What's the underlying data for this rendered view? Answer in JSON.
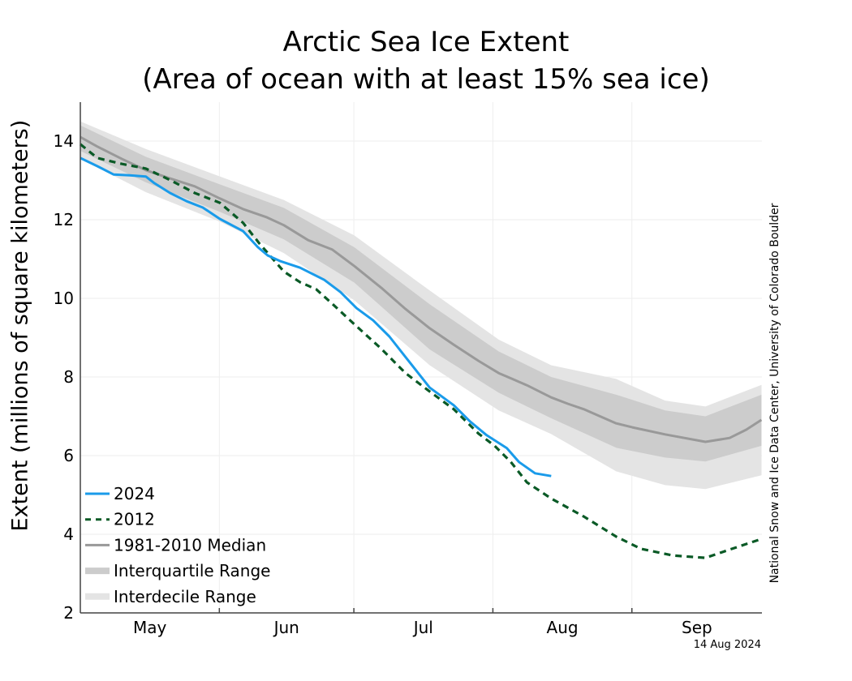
{
  "chart_data": {
    "type": "line",
    "title": "Arctic Sea Ice Extent",
    "subtitle": "(Area of ocean with at least 15% sea ice)",
    "xlabel": "",
    "ylabel": "Extent (millions of square kilometers)",
    "ylim": [
      2,
      15
    ],
    "yticks": [
      2,
      4,
      6,
      8,
      10,
      12,
      14
    ],
    "x_unit": "days since May 1",
    "xlim": [
      0,
      152
    ],
    "month_labels": [
      {
        "label": "May",
        "start_day": 0,
        "end_day": 31
      },
      {
        "label": "Jun",
        "start_day": 31,
        "end_day": 61
      },
      {
        "label": "Jul",
        "start_day": 61,
        "end_day": 92
      },
      {
        "label": "Aug",
        "start_day": 92,
        "end_day": 123
      },
      {
        "label": "Sep",
        "start_day": 123,
        "end_day": 152
      }
    ],
    "grid": true,
    "legend_position": "bottom-left",
    "credit": "National Snow and Ice Data Center, University of Colorado Boulder",
    "date_stamp": "14 Aug 2024",
    "series": [
      {
        "name": "2024",
        "kind": "line",
        "color": "#1a9bea",
        "dashed": false,
        "x": [
          0,
          3.8,
          7.4,
          11,
          14.6,
          16.5,
          20,
          23.7,
          27.3,
          31.1,
          36.3,
          39.6,
          41.8,
          44.5,
          49,
          54.4,
          58,
          61.6,
          65.3,
          68.9,
          72.5,
          77.9,
          83.3,
          86.9,
          90.6,
          95.1,
          97.8,
          101.4,
          105
        ],
        "y": [
          13.57,
          13.36,
          13.15,
          13.13,
          13.1,
          12.93,
          12.68,
          12.47,
          12.31,
          12.02,
          11.71,
          11.3,
          11.09,
          10.95,
          10.78,
          10.47,
          10.16,
          9.75,
          9.44,
          9.03,
          8.51,
          7.73,
          7.28,
          6.87,
          6.52,
          6.19,
          5.84,
          5.55,
          5.48
        ]
      },
      {
        "name": "2012",
        "kind": "dashed",
        "color": "#0a5a26",
        "dashed": true,
        "x": [
          0,
          3.8,
          9.2,
          14.6,
          20,
          25.5,
          31.1,
          36.3,
          39.9,
          45.4,
          49,
          52.6,
          56.2,
          61.1,
          67.1,
          72.5,
          77.9,
          83.3,
          88.8,
          92.4,
          96,
          99.6,
          105,
          112.3,
          119.5,
          125,
          132.2,
          139.4,
          144.8,
          151.9
        ],
        "y": [
          13.92,
          13.57,
          13.42,
          13.3,
          13.01,
          12.68,
          12.43,
          11.92,
          11.4,
          10.68,
          10.41,
          10.23,
          9.86,
          9.34,
          8.72,
          8.1,
          7.63,
          7.18,
          6.56,
          6.25,
          5.84,
          5.32,
          4.91,
          4.45,
          3.94,
          3.63,
          3.46,
          3.4,
          3.61,
          3.88
        ]
      },
      {
        "name": "1981-2010 Median",
        "kind": "line",
        "color": "#999999",
        "dashed": false,
        "x": [
          0,
          3.8,
          9.2,
          14.6,
          20,
          25.5,
          31.1,
          36.3,
          41.6,
          45.4,
          50.8,
          56.2,
          61.1,
          67.1,
          72.5,
          77.9,
          83.3,
          88.8,
          93.3,
          99.6,
          105,
          108.7,
          112.3,
          119.5,
          123.1,
          130.4,
          139.4,
          144.8,
          148.5,
          151.9
        ],
        "y": [
          14.1,
          13.86,
          13.55,
          13.26,
          13.05,
          12.85,
          12.54,
          12.27,
          12.06,
          11.86,
          11.48,
          11.24,
          10.82,
          10.27,
          9.73,
          9.24,
          8.82,
          8.41,
          8.1,
          7.79,
          7.48,
          7.32,
          7.18,
          6.82,
          6.72,
          6.54,
          6.35,
          6.45,
          6.66,
          6.91
        ]
      },
      {
        "name": "Interquartile Range",
        "kind": "band",
        "color": "#cccccc",
        "x": [
          0,
          14.6,
          31.1,
          45.4,
          61.1,
          77.9,
          93.3,
          105,
          119.5,
          130.4,
          139.4,
          151.9
        ],
        "upper": [
          14.4,
          13.6,
          12.9,
          12.3,
          11.3,
          9.85,
          8.65,
          8.0,
          7.55,
          7.15,
          7.0,
          7.55
        ],
        "lower": [
          13.75,
          12.95,
          12.2,
          11.5,
          10.4,
          8.7,
          7.6,
          6.95,
          6.2,
          5.95,
          5.85,
          6.25
        ]
      },
      {
        "name": "Interdecile Range",
        "kind": "band",
        "color": "#e4e4e4",
        "x": [
          0,
          14.6,
          31.1,
          45.4,
          61.1,
          77.9,
          93.3,
          105,
          119.5,
          130.4,
          139.4,
          151.9
        ],
        "upper": [
          14.5,
          13.8,
          13.1,
          12.5,
          11.6,
          10.2,
          8.95,
          8.3,
          7.95,
          7.4,
          7.25,
          7.8
        ],
        "lower": [
          13.55,
          12.7,
          11.95,
          11.15,
          9.95,
          8.3,
          7.15,
          6.55,
          5.6,
          5.25,
          5.15,
          5.5
        ]
      }
    ]
  }
}
